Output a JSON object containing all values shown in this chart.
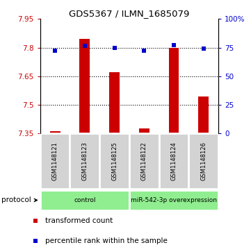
{
  "title": "GDS5367 / ILMN_1685079",
  "samples": [
    "GSM1148121",
    "GSM1148123",
    "GSM1148125",
    "GSM1148122",
    "GSM1148124",
    "GSM1148126"
  ],
  "bar_values": [
    7.362,
    7.847,
    7.672,
    7.376,
    7.8,
    7.543
  ],
  "blue_values": [
    7.783,
    7.81,
    7.8,
    7.783,
    7.812,
    7.795
  ],
  "bar_bottom": 7.35,
  "ylim_left": [
    7.35,
    7.95
  ],
  "ylim_right": [
    0,
    100
  ],
  "yticks_left": [
    7.35,
    7.5,
    7.65,
    7.8,
    7.95
  ],
  "yticks_right": [
    0,
    25,
    50,
    75,
    100
  ],
  "ytick_labels_left": [
    "7.35",
    "7.5",
    "7.65",
    "7.8",
    "7.95"
  ],
  "ytick_labels_right": [
    "0",
    "25",
    "50",
    "75",
    "100%"
  ],
  "bar_color": "#cc0000",
  "blue_color": "#0000cc",
  "group_labels": [
    "control",
    "miR-542-3p overexpression"
  ],
  "group_ranges": [
    [
      0,
      3
    ],
    [
      3,
      6
    ]
  ],
  "protocol_label": "protocol",
  "legend_bar_label": "transformed count",
  "legend_blue_label": "percentile rank within the sample",
  "plot_bg_color": "#ffffff",
  "sample_box_color": "#d3d3d3",
  "title_color": "#000000",
  "left_tick_color": "#cc0000",
  "right_tick_color": "#0000cc",
  "bar_width": 0.35
}
